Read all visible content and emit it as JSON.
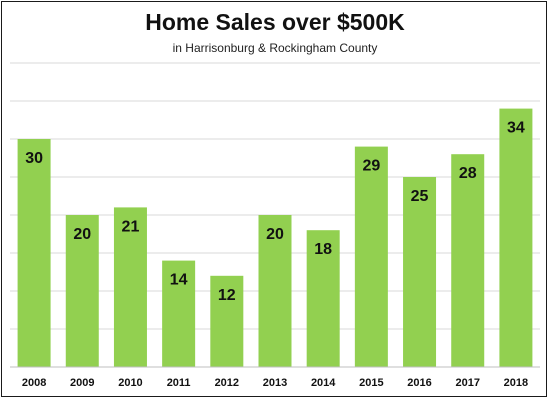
{
  "chart_data": {
    "type": "bar",
    "title": "Home Sales over $500K",
    "subtitle": "in Harrisonburg & Rockingham County",
    "categories": [
      "2008",
      "2009",
      "2010",
      "2011",
      "2012",
      "2013",
      "2014",
      "2015",
      "2016",
      "2017",
      "2018"
    ],
    "values": [
      30,
      20,
      21,
      14,
      12,
      20,
      18,
      29,
      25,
      28,
      34
    ],
    "xlabel": "",
    "ylabel": "",
    "ylim": [
      0,
      40
    ],
    "grid": true,
    "legend": "none",
    "bar_color": "#92d050",
    "data_labels": true
  }
}
